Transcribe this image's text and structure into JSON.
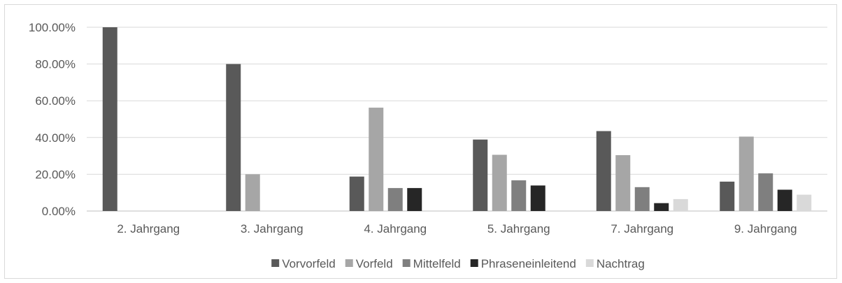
{
  "chart_data": {
    "type": "bar",
    "title": "",
    "xlabel": "",
    "ylabel": "",
    "ylim": [
      0,
      100
    ],
    "y_tick_labels": [
      "0.00%",
      "20.00%",
      "40.00%",
      "60.00%",
      "80.00%",
      "100.00%"
    ],
    "y_tick_values": [
      0,
      20,
      40,
      60,
      80,
      100
    ],
    "grid": true,
    "legend_position": "bottom",
    "categories": [
      "2. Jahrgang",
      "3. Jahrgang",
      "4. Jahrgang",
      "5. Jahrgang",
      "7. Jahrgang",
      "9. Jahrgang"
    ],
    "series": [
      {
        "name": "Vorvorfeld",
        "color": "#595959",
        "values": [
          100,
          80,
          18.75,
          38.9,
          43.5,
          16.0
        ]
      },
      {
        "name": "Vorfeld",
        "color": "#a6a6a6",
        "values": [
          0,
          20,
          56.25,
          30.6,
          30.4,
          40.5
        ]
      },
      {
        "name": "Mittelfeld",
        "color": "#7f7f7f",
        "values": [
          0,
          0,
          12.5,
          16.7,
          13.0,
          20.5
        ]
      },
      {
        "name": "Phraseneinleitend",
        "color": "#262626",
        "values": [
          0,
          0,
          12.5,
          13.9,
          4.3,
          11.6
        ]
      },
      {
        "name": "Nachtrag",
        "color": "#d9d9d9",
        "values": [
          0,
          0,
          0,
          0,
          6.5,
          8.9
        ]
      }
    ]
  }
}
